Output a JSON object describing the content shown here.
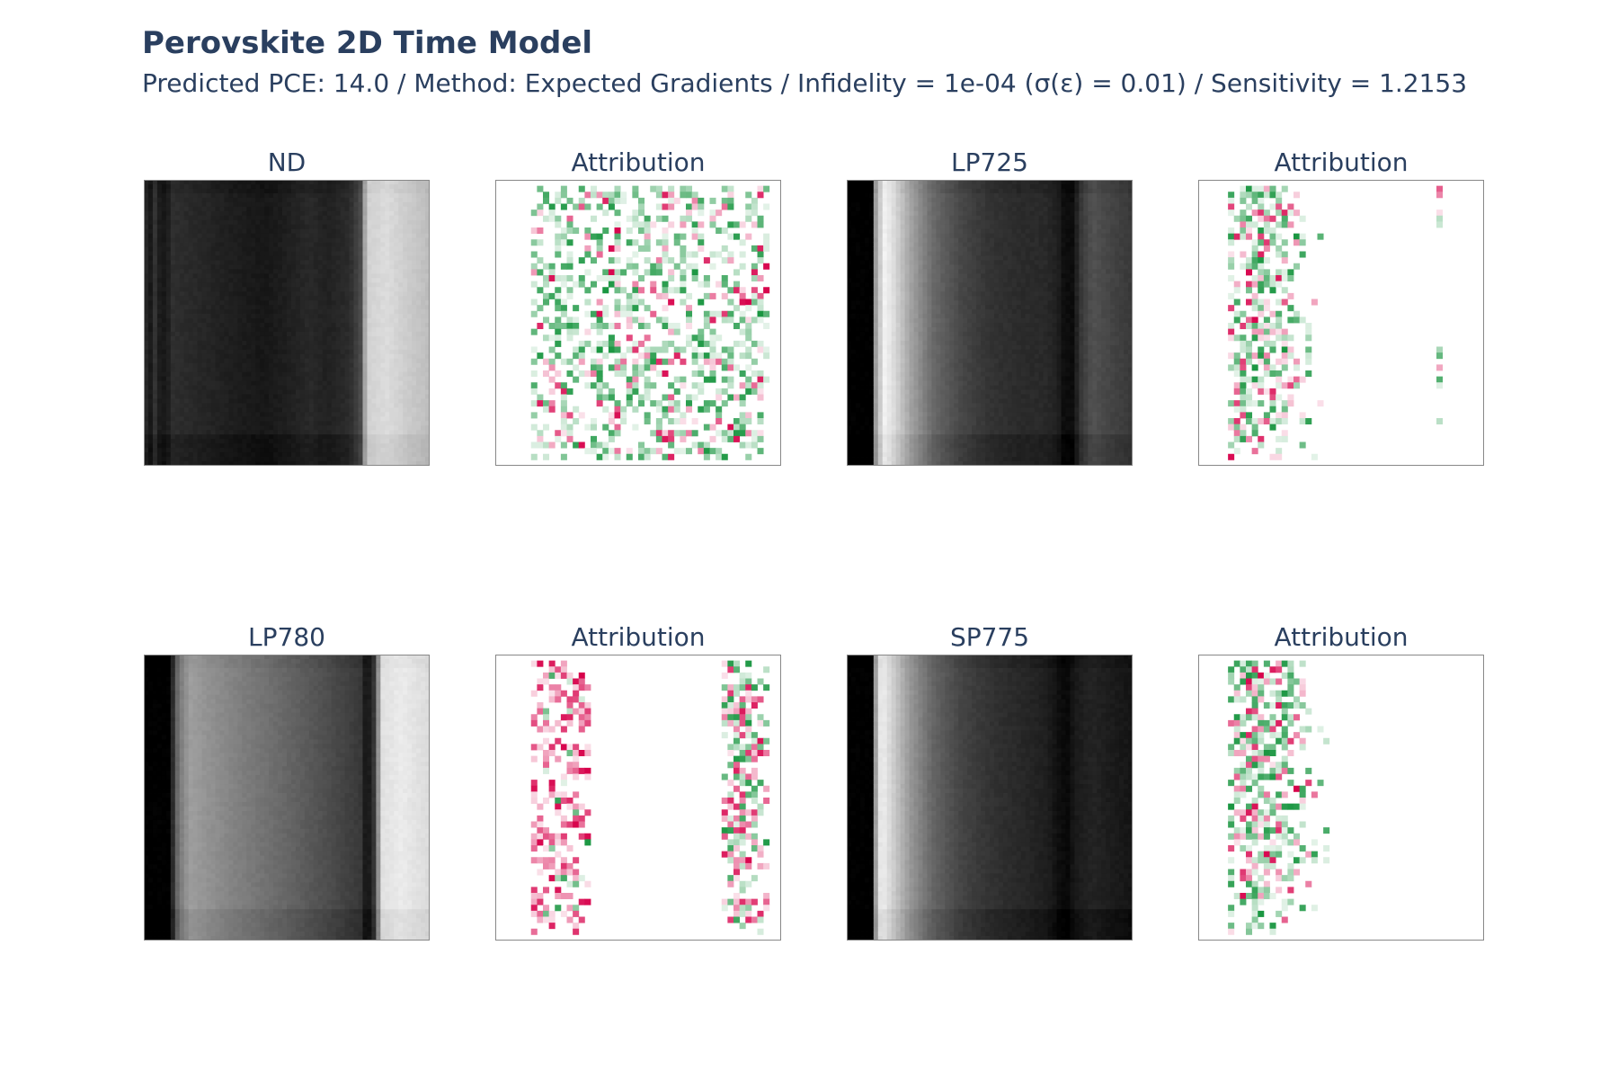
{
  "header": {
    "title": "Perovskite 2D Time Model",
    "subtitle": "Predicted PCE: 14.0 / Method: Expected Gradients / Infidelity = 1e-04 (σ(ε) = 0.01) / Sensitivity = 1.2153"
  },
  "colors": {
    "text": "#2a3f5f",
    "positive_attribution": "#1a9641",
    "negative_attribution": "#d7004a",
    "panel_border": "#888888"
  },
  "chart_data": [
    {
      "type": "heatmap",
      "id": "nd",
      "title": "ND",
      "colorscale": "greys",
      "column_profile": [
        [
          0.0,
          0.2
        ],
        [
          0.02,
          0.08
        ],
        [
          0.04,
          0.2
        ],
        [
          0.06,
          0.08
        ],
        [
          0.085,
          0.12
        ],
        [
          0.1,
          0.18
        ],
        [
          0.2,
          0.15
        ],
        [
          0.3,
          0.12
        ],
        [
          0.42,
          0.09
        ],
        [
          0.5,
          0.12
        ],
        [
          0.58,
          0.16
        ],
        [
          0.64,
          0.13
        ],
        [
          0.72,
          0.17
        ],
        [
          0.76,
          0.3
        ],
        [
          0.78,
          0.82
        ],
        [
          0.85,
          0.86
        ],
        [
          0.92,
          0.8
        ],
        [
          1.0,
          0.74
        ]
      ]
    },
    {
      "type": "heatmap",
      "id": "nd_attr",
      "title": "Attribution",
      "colorscale": "PiYG",
      "pattern": "scattered",
      "extent": [
        0.12,
        0.96
      ]
    },
    {
      "type": "heatmap",
      "id": "lp725",
      "title": "LP725",
      "colorscale": "greys",
      "column_profile": [
        [
          0.0,
          0.0
        ],
        [
          0.09,
          0.0
        ],
        [
          0.1,
          0.6
        ],
        [
          0.13,
          0.95
        ],
        [
          0.16,
          0.88
        ],
        [
          0.22,
          0.65
        ],
        [
          0.3,
          0.42
        ],
        [
          0.4,
          0.28
        ],
        [
          0.5,
          0.2
        ],
        [
          0.6,
          0.17
        ],
        [
          0.7,
          0.16
        ],
        [
          0.74,
          0.12
        ],
        [
          0.76,
          0.05
        ],
        [
          0.79,
          0.05
        ],
        [
          0.82,
          0.22
        ],
        [
          0.86,
          0.32
        ],
        [
          0.92,
          0.27
        ],
        [
          1.0,
          0.22
        ]
      ]
    },
    {
      "type": "heatmap",
      "id": "lp725_attr",
      "title": "Attribution",
      "colorscale": "PiYG",
      "pattern": "left_band",
      "extent": [
        0.1,
        0.43
      ],
      "secondary_band": [
        0.83,
        0.86
      ]
    },
    {
      "type": "heatmap",
      "id": "lp780",
      "title": "LP780",
      "colorscale": "greys",
      "column_profile": [
        [
          0.0,
          0.0
        ],
        [
          0.09,
          0.0
        ],
        [
          0.1,
          0.15
        ],
        [
          0.12,
          0.45
        ],
        [
          0.16,
          0.62
        ],
        [
          0.3,
          0.52
        ],
        [
          0.5,
          0.4
        ],
        [
          0.65,
          0.3
        ],
        [
          0.76,
          0.22
        ],
        [
          0.78,
          0.05
        ],
        [
          0.81,
          0.25
        ],
        [
          0.83,
          0.88
        ],
        [
          0.9,
          0.92
        ],
        [
          1.0,
          0.86
        ]
      ]
    },
    {
      "type": "heatmap",
      "id": "lp780_attr",
      "title": "Attribution",
      "colorscale": "PiYG",
      "pattern": "two_bands",
      "extent": [
        0.12,
        0.34
      ],
      "secondary_band": [
        0.8,
        0.96
      ]
    },
    {
      "type": "heatmap",
      "id": "sp775",
      "title": "SP775",
      "colorscale": "greys",
      "column_profile": [
        [
          0.0,
          0.0
        ],
        [
          0.09,
          0.0
        ],
        [
          0.1,
          0.6
        ],
        [
          0.12,
          0.95
        ],
        [
          0.15,
          0.85
        ],
        [
          0.22,
          0.6
        ],
        [
          0.3,
          0.4
        ],
        [
          0.4,
          0.27
        ],
        [
          0.5,
          0.2
        ],
        [
          0.6,
          0.16
        ],
        [
          0.7,
          0.12
        ],
        [
          0.74,
          0.06
        ],
        [
          0.77,
          0.03
        ],
        [
          0.8,
          0.1
        ],
        [
          0.86,
          0.14
        ],
        [
          0.92,
          0.11
        ],
        [
          1.0,
          0.08
        ]
      ]
    },
    {
      "type": "heatmap",
      "id": "sp775_attr",
      "title": "Attribution",
      "colorscale": "PiYG",
      "pattern": "left_band",
      "extent": [
        0.1,
        0.45
      ]
    }
  ]
}
